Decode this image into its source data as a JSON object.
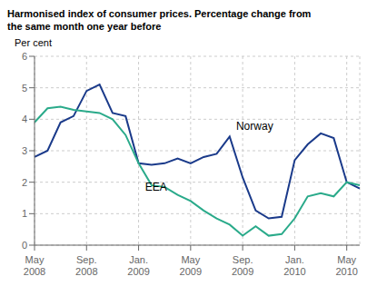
{
  "chart_data": {
    "type": "line",
    "title": "Harmonised index of consumer prices. Percentage change from\nthe same month one year before",
    "y_label": "Per cent",
    "categories": [
      "May\n2008",
      null,
      null,
      null,
      "Sep.\n2008",
      null,
      null,
      null,
      "Jan.\n2009",
      null,
      null,
      null,
      "May\n2009",
      null,
      null,
      null,
      "Sep.\n2009",
      null,
      null,
      null,
      "Jan.\n2010",
      null,
      null,
      null,
      "May\n2010",
      null
    ],
    "series": [
      {
        "name": "Norway",
        "color": "#1a3a8a",
        "values": [
          2.8,
          3.0,
          3.9,
          4.1,
          4.9,
          5.1,
          4.2,
          4.1,
          2.6,
          2.55,
          2.6,
          2.75,
          2.6,
          2.8,
          2.9,
          3.45,
          2.15,
          1.1,
          0.85,
          0.9,
          2.7,
          3.2,
          3.55,
          3.4,
          2.0,
          1.8
        ]
      },
      {
        "name": "EEA",
        "color": "#2aaa8a",
        "values": [
          3.9,
          4.35,
          4.4,
          4.3,
          4.25,
          4.2,
          4.0,
          3.5,
          2.6,
          1.9,
          1.85,
          1.6,
          1.4,
          1.1,
          0.85,
          0.65,
          0.3,
          0.6,
          0.3,
          0.35,
          0.85,
          1.55,
          1.65,
          1.55,
          2.0,
          1.9
        ]
      }
    ],
    "ylim": [
      0,
      6
    ],
    "yticks": [
      0,
      1,
      2,
      3,
      4,
      5,
      6
    ],
    "grid": true,
    "annotations": [
      {
        "text": "Norway",
        "x": 15.5,
        "y": 3.65
      },
      {
        "text": "EEA",
        "x": 8.5,
        "y": 1.72
      }
    ]
  }
}
